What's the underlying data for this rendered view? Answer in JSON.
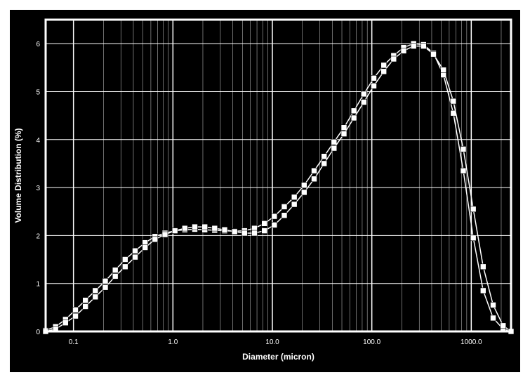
{
  "chart": {
    "type": "scatter-line-dual",
    "title": "",
    "xlabel": "Diameter (micron)",
    "ylabel": "Volume Distribution (%)",
    "label_fontsize": 12,
    "tick_fontsize": 10,
    "background_color": "#000000",
    "outer_border_color": "#ffffff",
    "grid_color": "#ffffff",
    "axis_text_color": "#ffffff",
    "grid_line_width": 1,
    "plot_border_width": 3,
    "xscale": "log",
    "yscale": "linear",
    "xlim_log10": [
      -1.28,
      3.4
    ],
    "ylim": [
      0,
      6.5
    ],
    "xticks_major_log10": [
      -1,
      0,
      1,
      2,
      3
    ],
    "xtick_labels": [
      "0.1",
      "1.0",
      "10.0",
      "100.0",
      "1000.0"
    ],
    "yticks_major": [
      0,
      1,
      2,
      3,
      4,
      5,
      6
    ],
    "ytick_labels": [
      "0",
      "1",
      "2",
      "3",
      "4",
      "5",
      "6"
    ],
    "seriesA": {
      "marker": "square",
      "marker_size": 8,
      "marker_fill": "#ffffff",
      "marker_stroke": "#000000",
      "line_color": "#ffffff",
      "line_width": 1.5,
      "x_log10": [
        -1.28,
        -1.18,
        -1.08,
        -0.98,
        -0.88,
        -0.78,
        -0.68,
        -0.58,
        -0.48,
        -0.38,
        -0.28,
        -0.18,
        -0.08,
        0.02,
        0.12,
        0.22,
        0.32,
        0.42,
        0.52,
        0.62,
        0.72,
        0.82,
        0.92,
        1.02,
        1.12,
        1.22,
        1.32,
        1.42,
        1.52,
        1.62,
        1.72,
        1.82,
        1.92,
        2.02,
        2.12,
        2.22,
        2.32,
        2.42,
        2.52,
        2.62,
        2.72,
        2.82,
        2.92,
        3.02,
        3.12,
        3.22,
        3.32,
        3.4
      ],
      "y": [
        0.02,
        0.1,
        0.25,
        0.45,
        0.65,
        0.85,
        1.05,
        1.28,
        1.5,
        1.68,
        1.85,
        1.98,
        2.05,
        2.1,
        2.12,
        2.13,
        2.12,
        2.11,
        2.1,
        2.09,
        2.1,
        2.15,
        2.25,
        2.4,
        2.6,
        2.8,
        3.05,
        3.35,
        3.65,
        3.95,
        4.25,
        4.6,
        4.95,
        5.28,
        5.55,
        5.75,
        5.92,
        6.0,
        5.98,
        5.8,
        5.35,
        4.55,
        3.35,
        1.95,
        0.85,
        0.28,
        0.05,
        0.0
      ]
    },
    "seriesB": {
      "marker": "square",
      "marker_size": 8,
      "marker_fill": "#ffffff",
      "marker_stroke": "#000000",
      "line_color": "#ffffff",
      "line_width": 1.5,
      "x_log10": [
        -1.28,
        -1.18,
        -1.08,
        -0.98,
        -0.88,
        -0.78,
        -0.68,
        -0.58,
        -0.48,
        -0.38,
        -0.28,
        -0.18,
        -0.08,
        0.02,
        0.12,
        0.22,
        0.32,
        0.42,
        0.52,
        0.62,
        0.72,
        0.82,
        0.92,
        1.02,
        1.12,
        1.22,
        1.32,
        1.42,
        1.52,
        1.62,
        1.72,
        1.82,
        1.92,
        2.02,
        2.12,
        2.22,
        2.32,
        2.42,
        2.52,
        2.62,
        2.72,
        2.82,
        2.92,
        3.02,
        3.12,
        3.22,
        3.32,
        3.4
      ],
      "y": [
        0.0,
        0.05,
        0.18,
        0.32,
        0.52,
        0.72,
        0.92,
        1.15,
        1.35,
        1.55,
        1.75,
        1.92,
        2.02,
        2.1,
        2.15,
        2.18,
        2.18,
        2.15,
        2.12,
        2.08,
        2.05,
        2.05,
        2.1,
        2.22,
        2.42,
        2.65,
        2.9,
        3.18,
        3.5,
        3.82,
        4.12,
        4.45,
        4.78,
        5.12,
        5.42,
        5.68,
        5.85,
        5.95,
        5.95,
        5.78,
        5.45,
        4.8,
        3.8,
        2.55,
        1.35,
        0.55,
        0.12,
        0.0
      ]
    }
  }
}
